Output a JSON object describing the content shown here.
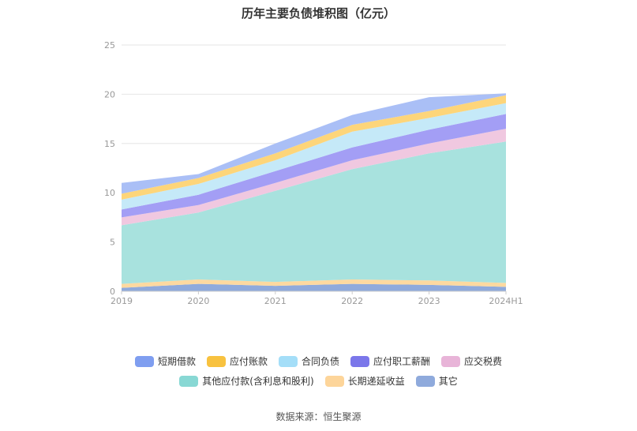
{
  "chart_data": {
    "type": "area",
    "stacked": true,
    "title": "历年主要负债堆积图（亿元）",
    "categories": [
      "2019",
      "2020",
      "2021",
      "2022",
      "2023",
      "2024H1"
    ],
    "ylim": [
      0,
      25
    ],
    "yticks": [
      0,
      5,
      10,
      15,
      20,
      25
    ],
    "grid": true,
    "legend_position": "bottom",
    "series": [
      {
        "name": "其它",
        "color": "#8faadc",
        "values": [
          0.35,
          0.75,
          0.55,
          0.75,
          0.65,
          0.45
        ]
      },
      {
        "name": "长期递延收益",
        "color": "#fdd9a0",
        "values": [
          0.4,
          0.45,
          0.4,
          0.45,
          0.45,
          0.4
        ]
      },
      {
        "name": "其他应付款(含利息和股利)",
        "color": "#a8e2de",
        "values": [
          5.95,
          6.8,
          9.25,
          11.2,
          12.9,
          14.35
        ]
      },
      {
        "name": "应交税费",
        "color": "#f0c8e0",
        "values": [
          0.8,
          0.75,
          0.8,
          0.9,
          1.0,
          1.3
        ]
      },
      {
        "name": "应付职工薪酬",
        "color": "#a39ef5",
        "values": [
          0.8,
          1.05,
          1.2,
          1.3,
          1.4,
          1.5
        ]
      },
      {
        "name": "合同负债",
        "color": "#c5e9f8",
        "values": [
          1.0,
          1.1,
          1.1,
          1.6,
          1.2,
          1.1
        ]
      },
      {
        "name": "应付账款",
        "color": "#fdd57a",
        "values": [
          0.6,
          0.6,
          0.7,
          0.7,
          0.7,
          0.8
        ]
      },
      {
        "name": "短期借款",
        "color": "#aabff6",
        "values": [
          1.1,
          0.4,
          1.0,
          1.0,
          1.4,
          0.2
        ]
      }
    ]
  },
  "legend": {
    "rows": [
      [
        {
          "label": "短期借款",
          "color": "#7f9ef0"
        },
        {
          "label": "应付账款",
          "color": "#f8c23f"
        },
        {
          "label": "合同负债",
          "color": "#a4def8"
        },
        {
          "label": "应付职工薪酬",
          "color": "#7b77ea"
        },
        {
          "label": "应交税费",
          "color": "#e8b4d8"
        }
      ],
      [
        {
          "label": "其他应付款(含利息和股利)",
          "color": "#88d8d4"
        },
        {
          "label": "长期递延收益",
          "color": "#fdd59a"
        },
        {
          "label": "其它",
          "color": "#8faadc"
        }
      ]
    ]
  },
  "source_note": "数据来源：恒生聚源"
}
